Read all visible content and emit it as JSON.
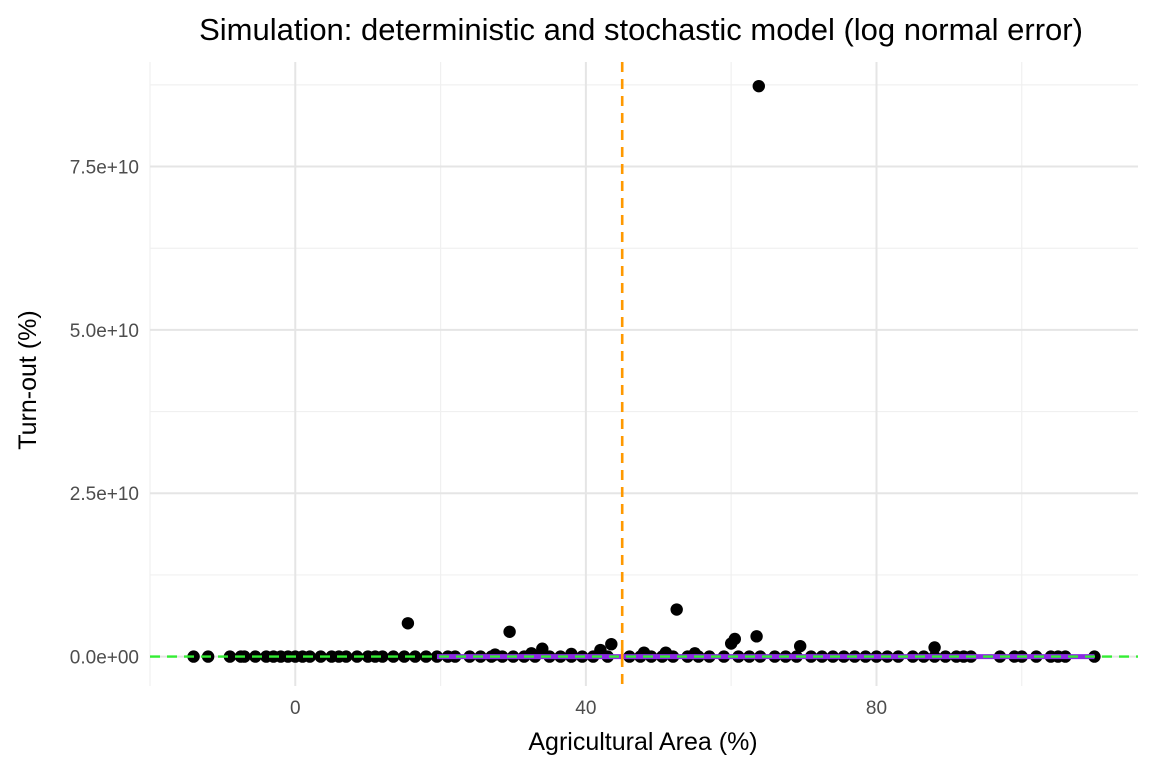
{
  "chart_data": {
    "type": "scatter",
    "title": "Simulation: deterministic and stochastic model (log normal error)",
    "xlabel": "Agricultural Area (%)",
    "ylabel": "Turn-out (%)",
    "xlim": [
      -20,
      116
    ],
    "ylim": [
      -4500000000,
      91000000000
    ],
    "x_ticks": [
      0,
      40,
      80
    ],
    "x_tick_labels": [
      "0",
      "40",
      "80"
    ],
    "y_ticks": [
      0,
      25000000000,
      50000000000,
      75000000000
    ],
    "y_tick_labels": [
      "0.0e+00",
      "2.5e+10",
      "5.0e+10",
      "7.5e+10"
    ],
    "grid": true,
    "legend": "none",
    "reference_lines": [
      {
        "orientation": "vertical",
        "x": 45,
        "style": "dashed",
        "color": "#ff9900"
      },
      {
        "orientation": "horizontal",
        "y": 0,
        "style": "dashed",
        "color": "#33ee33"
      }
    ],
    "fitted_line": {
      "x": [
        19.5,
        110
      ],
      "y": [
        0,
        0
      ],
      "color": "#8a2be2"
    },
    "series": [
      {
        "color": "#000000",
        "points": [
          [
            -14,
            0
          ],
          [
            -12,
            0
          ],
          [
            -9,
            0
          ],
          [
            -7.5,
            0
          ],
          [
            -7,
            0
          ],
          [
            -5.5,
            0
          ],
          [
            -4,
            0
          ],
          [
            -3,
            0
          ],
          [
            -2,
            0
          ],
          [
            -1,
            0
          ],
          [
            0,
            0
          ],
          [
            1,
            0
          ],
          [
            2,
            0
          ],
          [
            3.5,
            0
          ],
          [
            5,
            0
          ],
          [
            6,
            0
          ],
          [
            7,
            0
          ],
          [
            8.5,
            0
          ],
          [
            10,
            0
          ],
          [
            11,
            0
          ],
          [
            12,
            0
          ],
          [
            13.5,
            0
          ],
          [
            15,
            0
          ],
          [
            16.5,
            0
          ],
          [
            18,
            0
          ],
          [
            19.5,
            0
          ],
          [
            21,
            0
          ],
          [
            22,
            0
          ],
          [
            24,
            0
          ],
          [
            25.5,
            0
          ],
          [
            27,
            0
          ],
          [
            28.5,
            0
          ],
          [
            30,
            0
          ],
          [
            31.5,
            0
          ],
          [
            33,
            0
          ],
          [
            35,
            0
          ],
          [
            36.5,
            0
          ],
          [
            38,
            0
          ],
          [
            39.5,
            0
          ],
          [
            41,
            0
          ],
          [
            43,
            0
          ],
          [
            46,
            0
          ],
          [
            47.5,
            0
          ],
          [
            49,
            0
          ],
          [
            50.5,
            0
          ],
          [
            52,
            0
          ],
          [
            54,
            0
          ],
          [
            55.5,
            0
          ],
          [
            57,
            0
          ],
          [
            59,
            0
          ],
          [
            61,
            0
          ],
          [
            62.5,
            0
          ],
          [
            64,
            0
          ],
          [
            66,
            0
          ],
          [
            67.5,
            0
          ],
          [
            69,
            0
          ],
          [
            71,
            0
          ],
          [
            72.5,
            0
          ],
          [
            74,
            0
          ],
          [
            75.5,
            0
          ],
          [
            77,
            0
          ],
          [
            78.5,
            0
          ],
          [
            80,
            0
          ],
          [
            81.5,
            0
          ],
          [
            83,
            0
          ],
          [
            85,
            0
          ],
          [
            86.5,
            0
          ],
          [
            88,
            0
          ],
          [
            89.5,
            0
          ],
          [
            91,
            0
          ],
          [
            92,
            0
          ],
          [
            93,
            0
          ],
          [
            97,
            0
          ],
          [
            99,
            0
          ],
          [
            100,
            0
          ],
          [
            102,
            0
          ],
          [
            104,
            0
          ],
          [
            105,
            0
          ],
          [
            106,
            0
          ],
          [
            110,
            0
          ],
          [
            15.5,
            5100000000
          ],
          [
            29.5,
            3800000000
          ],
          [
            34,
            1200000000
          ],
          [
            32.5,
            500000000
          ],
          [
            38,
            400000000
          ],
          [
            27.5,
            300000000
          ],
          [
            42,
            1000000000
          ],
          [
            43.5,
            1900000000
          ],
          [
            48,
            600000000
          ],
          [
            51,
            600000000
          ],
          [
            52.5,
            7200000000
          ],
          [
            55,
            500000000
          ],
          [
            60,
            2000000000
          ],
          [
            60.5,
            2700000000
          ],
          [
            63.5,
            3100000000
          ],
          [
            69.5,
            1600000000
          ],
          [
            88,
            1400000000
          ],
          [
            63.8,
            87300000000
          ]
        ]
      }
    ]
  }
}
